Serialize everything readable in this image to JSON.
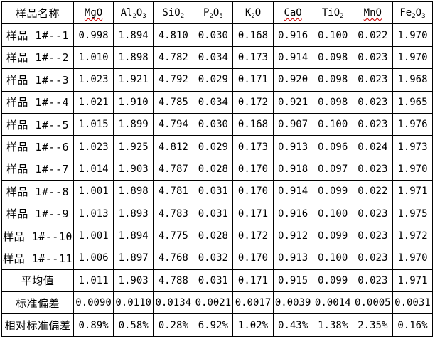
{
  "page": {
    "background": "#ffffff",
    "border_color": "#000000",
    "squiggle_color": "#cc0000"
  },
  "table": {
    "header": {
      "name_label": "样品名称",
      "columns": [
        {
          "id": "MgO",
          "segments": [
            "MgO"
          ],
          "squiggle": true
        },
        {
          "id": "Al2O3",
          "segments": [
            "Al",
            "2",
            "O",
            "3"
          ],
          "squiggle": false
        },
        {
          "id": "SiO2",
          "segments": [
            "SiO",
            "2"
          ],
          "squiggle": false
        },
        {
          "id": "P2O5",
          "segments": [
            "P",
            "2",
            "O",
            "5"
          ],
          "squiggle": false
        },
        {
          "id": "K2O",
          "segments": [
            "K",
            "2",
            "O"
          ],
          "squiggle": false
        },
        {
          "id": "CaO",
          "segments": [
            "CaO"
          ],
          "squiggle": true
        },
        {
          "id": "TiO2",
          "segments": [
            "TiO",
            "2"
          ],
          "squiggle": false
        },
        {
          "id": "MnO",
          "segments": [
            "MnO"
          ],
          "squiggle": true
        },
        {
          "id": "Fe2O3",
          "segments": [
            "Fe",
            "2",
            "O",
            "3"
          ],
          "squiggle": false
        }
      ]
    },
    "rows": [
      {
        "label": "样品 1#--1",
        "values": [
          "0.998",
          "1.894",
          "4.810",
          "0.030",
          "0.168",
          "0.916",
          "0.100",
          "0.022",
          "1.970"
        ]
      },
      {
        "label": "样品 1#--2",
        "values": [
          "1.010",
          "1.898",
          "4.782",
          "0.034",
          "0.173",
          "0.914",
          "0.098",
          "0.023",
          "1.970"
        ]
      },
      {
        "label": "样品 1#--3",
        "values": [
          "1.023",
          "1.921",
          "4.792",
          "0.029",
          "0.171",
          "0.920",
          "0.098",
          "0.023",
          "1.968"
        ]
      },
      {
        "label": "样品 1#--4",
        "values": [
          "1.021",
          "1.910",
          "4.785",
          "0.034",
          "0.172",
          "0.921",
          "0.098",
          "0.023",
          "1.965"
        ]
      },
      {
        "label": "样品 1#--5",
        "values": [
          "1.015",
          "1.899",
          "4.794",
          "0.030",
          "0.168",
          "0.907",
          "0.100",
          "0.023",
          "1.976"
        ]
      },
      {
        "label": "样品 1#--6",
        "values": [
          "1.023",
          "1.925",
          "4.812",
          "0.029",
          "0.173",
          "0.913",
          "0.096",
          "0.024",
          "1.973"
        ]
      },
      {
        "label": "样品 1#--7",
        "values": [
          "1.014",
          "1.903",
          "4.787",
          "0.028",
          "0.170",
          "0.918",
          "0.097",
          "0.023",
          "1.970"
        ]
      },
      {
        "label": "样品 1#--8",
        "values": [
          "1.001",
          "1.898",
          "4.781",
          "0.031",
          "0.170",
          "0.914",
          "0.099",
          "0.022",
          "1.971"
        ]
      },
      {
        "label": "样品 1#--9",
        "values": [
          "1.013",
          "1.893",
          "4.783",
          "0.031",
          "0.171",
          "0.916",
          "0.100",
          "0.023",
          "1.975"
        ]
      },
      {
        "label": "样品 1#--10",
        "values": [
          "1.001",
          "1.894",
          "4.775",
          "0.028",
          "0.172",
          "0.912",
          "0.099",
          "0.023",
          "1.972"
        ]
      },
      {
        "label": "样品 1#--11",
        "values": [
          "1.006",
          "1.897",
          "4.768",
          "0.032",
          "0.170",
          "0.913",
          "0.100",
          "0.023",
          "1.970"
        ]
      },
      {
        "label": "平均值",
        "values": [
          "1.011",
          "1.903",
          "4.788",
          "0.031",
          "0.171",
          "0.915",
          "0.099",
          "0.023",
          "1.971"
        ]
      },
      {
        "label": "标准偏差",
        "values": [
          "0.0090",
          "0.0110",
          "0.0134",
          "0.0021",
          "0.0017",
          "0.0039",
          "0.0014",
          "0.0005",
          "0.0031"
        ]
      },
      {
        "label": "相对标准偏差",
        "values": [
          "0.89%",
          "0.58%",
          "0.28%",
          "6.92%",
          "1.02%",
          "0.43%",
          "1.38%",
          "2.35%",
          "0.16%"
        ]
      }
    ]
  }
}
